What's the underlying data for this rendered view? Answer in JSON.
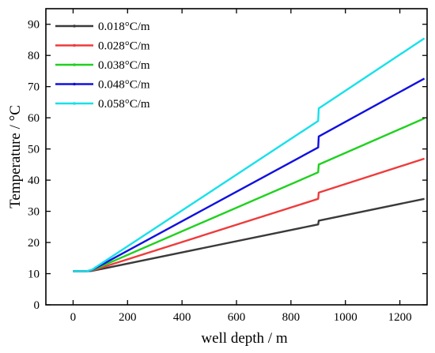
{
  "chart_data": {
    "type": "line",
    "xlabel": "well depth / m",
    "ylabel": "Temperature / °C",
    "xlim": [
      -100,
      1300
    ],
    "ylim": [
      0,
      95
    ],
    "xticks": [
      0,
      200,
      400,
      600,
      800,
      1000,
      1200
    ],
    "yticks": [
      0,
      10,
      20,
      30,
      40,
      50,
      60,
      70,
      80,
      90
    ],
    "grid": false,
    "legend_position": "top-left",
    "series": [
      {
        "name": "0.018°C/m",
        "color": "#3a3a3a",
        "points": [
          [
            0,
            10.8
          ],
          [
            50,
            10.8
          ],
          [
            70,
            10.9
          ],
          [
            900,
            25.8
          ],
          [
            902,
            27.0
          ],
          [
            1290,
            34.0
          ]
        ]
      },
      {
        "name": "0.028°C/m",
        "color": "#ee3b3b",
        "points": [
          [
            0,
            10.8
          ],
          [
            50,
            10.8
          ],
          [
            70,
            11.0
          ],
          [
            900,
            34.0
          ],
          [
            902,
            36.0
          ],
          [
            1290,
            46.9
          ]
        ]
      },
      {
        "name": "0.038°C/m",
        "color": "#1fd11f",
        "points": [
          [
            0,
            10.8
          ],
          [
            50,
            10.8
          ],
          [
            70,
            11.1
          ],
          [
            900,
            42.5
          ],
          [
            902,
            45.0
          ],
          [
            1290,
            59.8
          ]
        ]
      },
      {
        "name": "0.048°C/m",
        "color": "#1010e0",
        "points": [
          [
            0,
            10.8
          ],
          [
            50,
            10.8
          ],
          [
            70,
            11.2
          ],
          [
            900,
            50.5
          ],
          [
            902,
            54.0
          ],
          [
            1290,
            72.6
          ]
        ]
      },
      {
        "name": "0.058°C/m",
        "color": "#18e0ea",
        "points": [
          [
            0,
            10.8
          ],
          [
            50,
            10.8
          ],
          [
            70,
            11.3
          ],
          [
            900,
            59.0
          ],
          [
            902,
            63.0
          ],
          [
            1290,
            85.5
          ]
        ]
      }
    ]
  }
}
